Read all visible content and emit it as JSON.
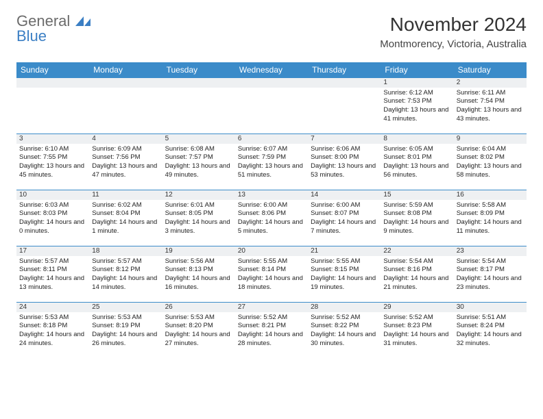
{
  "logo": {
    "general": "General",
    "blue": "Blue"
  },
  "title": "November 2024",
  "location": "Montmorency, Victoria, Australia",
  "header_color": "#3b8bc9",
  "border_color": "#3b8bc9",
  "daynum_bg": "#eef0f2",
  "day_headers": [
    "Sunday",
    "Monday",
    "Tuesday",
    "Wednesday",
    "Thursday",
    "Friday",
    "Saturday"
  ],
  "weeks": [
    [
      {
        "n": "",
        "info": ""
      },
      {
        "n": "",
        "info": ""
      },
      {
        "n": "",
        "info": ""
      },
      {
        "n": "",
        "info": ""
      },
      {
        "n": "",
        "info": ""
      },
      {
        "n": "1",
        "info": "Sunrise: 6:12 AM\nSunset: 7:53 PM\nDaylight: 13 hours and 41 minutes."
      },
      {
        "n": "2",
        "info": "Sunrise: 6:11 AM\nSunset: 7:54 PM\nDaylight: 13 hours and 43 minutes."
      }
    ],
    [
      {
        "n": "3",
        "info": "Sunrise: 6:10 AM\nSunset: 7:55 PM\nDaylight: 13 hours and 45 minutes."
      },
      {
        "n": "4",
        "info": "Sunrise: 6:09 AM\nSunset: 7:56 PM\nDaylight: 13 hours and 47 minutes."
      },
      {
        "n": "5",
        "info": "Sunrise: 6:08 AM\nSunset: 7:57 PM\nDaylight: 13 hours and 49 minutes."
      },
      {
        "n": "6",
        "info": "Sunrise: 6:07 AM\nSunset: 7:59 PM\nDaylight: 13 hours and 51 minutes."
      },
      {
        "n": "7",
        "info": "Sunrise: 6:06 AM\nSunset: 8:00 PM\nDaylight: 13 hours and 53 minutes."
      },
      {
        "n": "8",
        "info": "Sunrise: 6:05 AM\nSunset: 8:01 PM\nDaylight: 13 hours and 56 minutes."
      },
      {
        "n": "9",
        "info": "Sunrise: 6:04 AM\nSunset: 8:02 PM\nDaylight: 13 hours and 58 minutes."
      }
    ],
    [
      {
        "n": "10",
        "info": "Sunrise: 6:03 AM\nSunset: 8:03 PM\nDaylight: 14 hours and 0 minutes."
      },
      {
        "n": "11",
        "info": "Sunrise: 6:02 AM\nSunset: 8:04 PM\nDaylight: 14 hours and 1 minute."
      },
      {
        "n": "12",
        "info": "Sunrise: 6:01 AM\nSunset: 8:05 PM\nDaylight: 14 hours and 3 minutes."
      },
      {
        "n": "13",
        "info": "Sunrise: 6:00 AM\nSunset: 8:06 PM\nDaylight: 14 hours and 5 minutes."
      },
      {
        "n": "14",
        "info": "Sunrise: 6:00 AM\nSunset: 8:07 PM\nDaylight: 14 hours and 7 minutes."
      },
      {
        "n": "15",
        "info": "Sunrise: 5:59 AM\nSunset: 8:08 PM\nDaylight: 14 hours and 9 minutes."
      },
      {
        "n": "16",
        "info": "Sunrise: 5:58 AM\nSunset: 8:09 PM\nDaylight: 14 hours and 11 minutes."
      }
    ],
    [
      {
        "n": "17",
        "info": "Sunrise: 5:57 AM\nSunset: 8:11 PM\nDaylight: 14 hours and 13 minutes."
      },
      {
        "n": "18",
        "info": "Sunrise: 5:57 AM\nSunset: 8:12 PM\nDaylight: 14 hours and 14 minutes."
      },
      {
        "n": "19",
        "info": "Sunrise: 5:56 AM\nSunset: 8:13 PM\nDaylight: 14 hours and 16 minutes."
      },
      {
        "n": "20",
        "info": "Sunrise: 5:55 AM\nSunset: 8:14 PM\nDaylight: 14 hours and 18 minutes."
      },
      {
        "n": "21",
        "info": "Sunrise: 5:55 AM\nSunset: 8:15 PM\nDaylight: 14 hours and 19 minutes."
      },
      {
        "n": "22",
        "info": "Sunrise: 5:54 AM\nSunset: 8:16 PM\nDaylight: 14 hours and 21 minutes."
      },
      {
        "n": "23",
        "info": "Sunrise: 5:54 AM\nSunset: 8:17 PM\nDaylight: 14 hours and 23 minutes."
      }
    ],
    [
      {
        "n": "24",
        "info": "Sunrise: 5:53 AM\nSunset: 8:18 PM\nDaylight: 14 hours and 24 minutes."
      },
      {
        "n": "25",
        "info": "Sunrise: 5:53 AM\nSunset: 8:19 PM\nDaylight: 14 hours and 26 minutes."
      },
      {
        "n": "26",
        "info": "Sunrise: 5:53 AM\nSunset: 8:20 PM\nDaylight: 14 hours and 27 minutes."
      },
      {
        "n": "27",
        "info": "Sunrise: 5:52 AM\nSunset: 8:21 PM\nDaylight: 14 hours and 28 minutes."
      },
      {
        "n": "28",
        "info": "Sunrise: 5:52 AM\nSunset: 8:22 PM\nDaylight: 14 hours and 30 minutes."
      },
      {
        "n": "29",
        "info": "Sunrise: 5:52 AM\nSunset: 8:23 PM\nDaylight: 14 hours and 31 minutes."
      },
      {
        "n": "30",
        "info": "Sunrise: 5:51 AM\nSunset: 8:24 PM\nDaylight: 14 hours and 32 minutes."
      }
    ]
  ]
}
